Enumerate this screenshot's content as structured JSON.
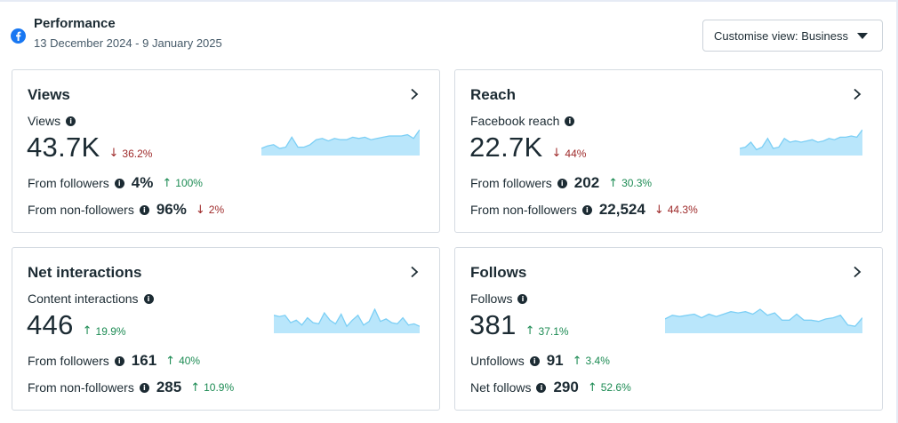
{
  "header": {
    "title": "Performance",
    "date_range": "13 December 2024 - 9 January 2025",
    "customise_label": "Customise view: Business"
  },
  "colors": {
    "spark_fill": "#b9e6fb",
    "spark_line": "#7ccff5",
    "up": "#1c8b53",
    "down": "#9e2a2a",
    "facebook_blue": "#1877f2"
  },
  "cards": [
    {
      "title": "Views",
      "metric_label": "Views",
      "metric_value": "43.7K",
      "metric_delta": "36.2%",
      "metric_dir": "down",
      "row1_label": "From followers",
      "row1_value": "4%",
      "row1_delta": "100%",
      "row1_dir": "up",
      "row2_label": "From non-followers",
      "row2_value": "96%",
      "row2_delta": "2%",
      "row2_dir": "down",
      "spark": [
        5,
        7,
        8,
        5,
        6,
        14,
        6,
        6,
        8,
        12,
        13,
        11,
        13,
        12,
        12,
        14,
        13,
        14,
        12,
        13,
        14,
        15,
        15,
        15,
        16,
        13,
        20
      ]
    },
    {
      "title": "Reach",
      "metric_label": "Facebook reach",
      "metric_value": "22.7K",
      "metric_delta": "44%",
      "metric_dir": "down",
      "row1_label": "From followers",
      "row1_value": "202",
      "row1_delta": "30.3%",
      "row1_dir": "up",
      "row2_label": "From non-followers",
      "row2_value": "22,524",
      "row2_delta": "44.3%",
      "row2_dir": "down",
      "spark": [
        5,
        6,
        10,
        4,
        6,
        13,
        5,
        6,
        13,
        10,
        11,
        10,
        11,
        12,
        10,
        11,
        13,
        12,
        14,
        14,
        15,
        14,
        20
      ]
    },
    {
      "title": "Net interactions",
      "metric_label": "Content interactions",
      "metric_value": "446",
      "metric_delta": "19.9%",
      "metric_dir": "up",
      "row1_label": "From followers",
      "row1_value": "161",
      "row1_delta": "40%",
      "row1_dir": "up",
      "row2_label": "From non-followers",
      "row2_value": "285",
      "row2_delta": "10.9%",
      "row2_dir": "up",
      "spark": [
        14,
        13,
        14,
        8,
        10,
        6,
        12,
        8,
        7,
        16,
        10,
        7,
        15,
        5,
        10,
        14,
        6,
        9,
        19,
        9,
        11,
        8,
        7,
        12,
        6,
        7,
        5
      ]
    },
    {
      "title": "Follows",
      "metric_label": "Follows",
      "metric_value": "381",
      "metric_delta": "37.1%",
      "metric_dir": "up",
      "row1_label": "Unfollows",
      "row1_value": "91",
      "row1_delta": "3.4%",
      "row1_dir": "up",
      "row2_label": "Net follows",
      "row2_value": "290",
      "row2_delta": "52.6%",
      "row2_dir": "up",
      "spark": [
        11,
        14,
        13,
        14,
        15,
        12,
        15,
        13,
        15,
        17,
        16,
        17,
        15,
        19,
        14,
        16,
        10,
        10,
        15,
        10,
        10,
        9,
        11,
        12,
        14,
        6,
        5,
        12
      ]
    }
  ]
}
